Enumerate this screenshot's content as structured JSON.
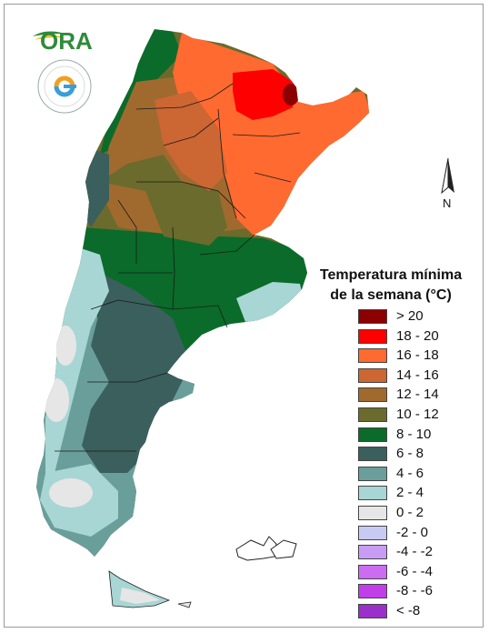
{
  "logos": {
    "ora_text": "ORA"
  },
  "north_label": "N",
  "legend": {
    "title_line1": "Temperatura mínima",
    "title_line2": "de la semana (°C)",
    "items": [
      {
        "label": "> 20",
        "color": "#8b0000"
      },
      {
        "label": "18 - 20",
        "color": "#ff0000"
      },
      {
        "label": "16 - 18",
        "color": "#ff6a30"
      },
      {
        "label": "14 - 16",
        "color": "#cc6633"
      },
      {
        "label": "12 - 14",
        "color": "#a06a2e"
      },
      {
        "label": "10 - 12",
        "color": "#6b6b2d"
      },
      {
        "label": "8 - 10",
        "color": "#0b6b2a"
      },
      {
        "label": "6 - 8",
        "color": "#3a5f5c"
      },
      {
        "label": "4 - 6",
        "color": "#6a9e9b"
      },
      {
        "label": "2 - 4",
        "color": "#a8d6d4"
      },
      {
        "label": "0 - 2",
        "color": "#e6e6e6"
      },
      {
        "label": "-2 - 0",
        "color": "#c9caf3"
      },
      {
        "label": "-4 - -2",
        "color": "#c89cf5"
      },
      {
        "label": "-6 - -4",
        "color": "#cc6cf2"
      },
      {
        "label": "-8 - -6",
        "color": "#c23ee8"
      },
      {
        "label": "< -8",
        "color": "#9a2fc9"
      }
    ]
  }
}
